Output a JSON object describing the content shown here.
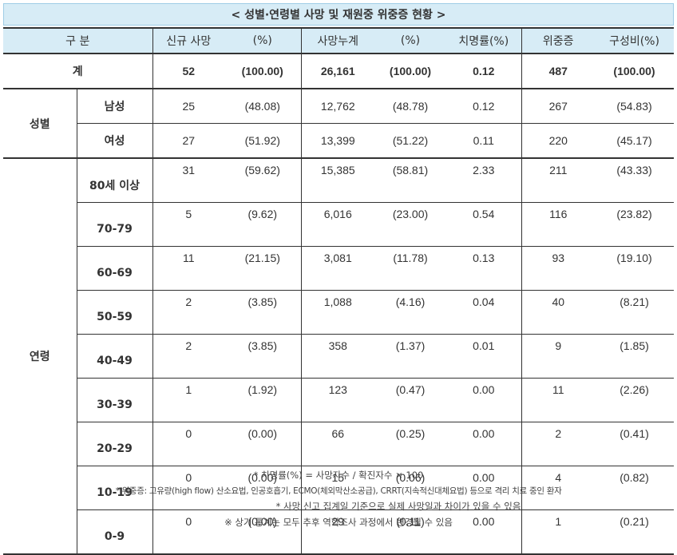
{
  "title": "< 성별·연령별 사망 및 재원중 위중증 현황 >",
  "headers": [
    "구 분",
    "신규 사망",
    "(%)",
    "사망누계",
    "(%)",
    "치명률(%)",
    "위중증",
    "구성비(%)"
  ],
  "total": {
    "label": "계",
    "values": [
      "52",
      "(100.00)",
      "26,161",
      "(100.00)",
      "0.12",
      "487",
      "(100.00)"
    ]
  },
  "sex_group": "성별",
  "sex_rows": [
    {
      "label": "남성",
      "values": [
        "25",
        "(48.08)",
        "12,762",
        "(48.78)",
        "0.12",
        "267",
        "(54.83)"
      ]
    },
    {
      "label": "여성",
      "values": [
        "27",
        "(51.92)",
        "13,399",
        "(51.22)",
        "0.11",
        "220",
        "(45.17)"
      ]
    }
  ],
  "age_group": "연령",
  "age_rows": [
    {
      "label": "80세 이상",
      "values": [
        "31",
        "(59.62)",
        "15,385",
        "(58.81)",
        "2.33",
        "211",
        "(43.33)"
      ]
    },
    {
      "label": "70-79",
      "values": [
        "5",
        "(9.62)",
        "6,016",
        "(23.00)",
        "0.54",
        "116",
        "(23.82)"
      ]
    },
    {
      "label": "60-69",
      "values": [
        "11",
        "(21.15)",
        "3,081",
        "(11.78)",
        "0.13",
        "93",
        "(19.10)"
      ]
    },
    {
      "label": "50-59",
      "values": [
        "2",
        "(3.85)",
        "1,088",
        "(4.16)",
        "0.04",
        "40",
        "(8.21)"
      ]
    },
    {
      "label": "40-49",
      "values": [
        "2",
        "(3.85)",
        "358",
        "(1.37)",
        "0.01",
        "9",
        "(1.85)"
      ]
    },
    {
      "label": "30-39",
      "values": [
        "1",
        "(1.92)",
        "123",
        "(0.47)",
        "0.00",
        "11",
        "(2.26)"
      ]
    },
    {
      "label": "20-29",
      "values": [
        "0",
        "(0.00)",
        "66",
        "(0.25)",
        "0.00",
        "2",
        "(0.41)"
      ]
    },
    {
      "label": "10-19",
      "values": [
        "0",
        "(0.00)",
        "15",
        "(0.06)",
        "0.00",
        "4",
        "(0.82)"
      ]
    },
    {
      "label": "0-9",
      "values": [
        "0",
        "(0.00)",
        "29",
        "(0.11)",
        "0.00",
        "1",
        "(0.21)"
      ]
    }
  ],
  "notes": [
    "* 치명률(%) = 사망자수 / 확진자수 × 100",
    "* 위중증: 고유량(high flow) 산소요법, 인공호흡기, ECMO(체외막산소공급), CRRT(지속적신대체요법) 등으로 격리 치료 중인 환자",
    "* 사망 신고 집계일 기준으로 실제 사망일과 차이가 있을 수 있음",
    "※ 상기 통계는 모두 추후 역학조사 과정에서 변경될 수 있음"
  ]
}
